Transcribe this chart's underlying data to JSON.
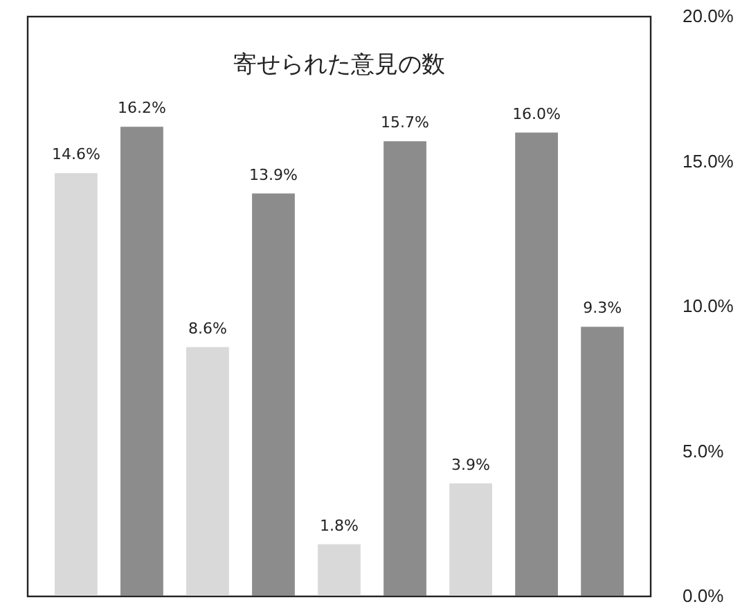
{
  "chart_data": {
    "type": "bar",
    "title": "寄せられた意見の数",
    "categories": [
      null,
      null,
      null,
      null,
      null,
      null,
      null,
      null,
      null
    ],
    "values": [
      14.6,
      16.2,
      8.6,
      13.9,
      1.8,
      15.7,
      3.9,
      16.0,
      9.3
    ],
    "value_labels": [
      "14.6%",
      "16.2%",
      "8.6%",
      "13.9%",
      "1.8%",
      "15.7%",
      "3.9%",
      "16.0%",
      "9.3%"
    ],
    "colors": [
      "#d9d9d9",
      "#8c8c8c",
      "#d9d9d9",
      "#8c8c8c",
      "#d9d9d9",
      "#8c8c8c",
      "#d9d9d9",
      "#8c8c8c",
      "#8c8c8c"
    ],
    "ylim": [
      0,
      20
    ],
    "yticks": [
      {
        "value": 0,
        "label": "0.0%"
      },
      {
        "value": 5,
        "label": "5.0%"
      },
      {
        "value": 10,
        "label": "10.0%"
      },
      {
        "value": 15,
        "label": "15.0%"
      },
      {
        "value": 20,
        "label": "20.0%"
      }
    ],
    "grid": false
  }
}
